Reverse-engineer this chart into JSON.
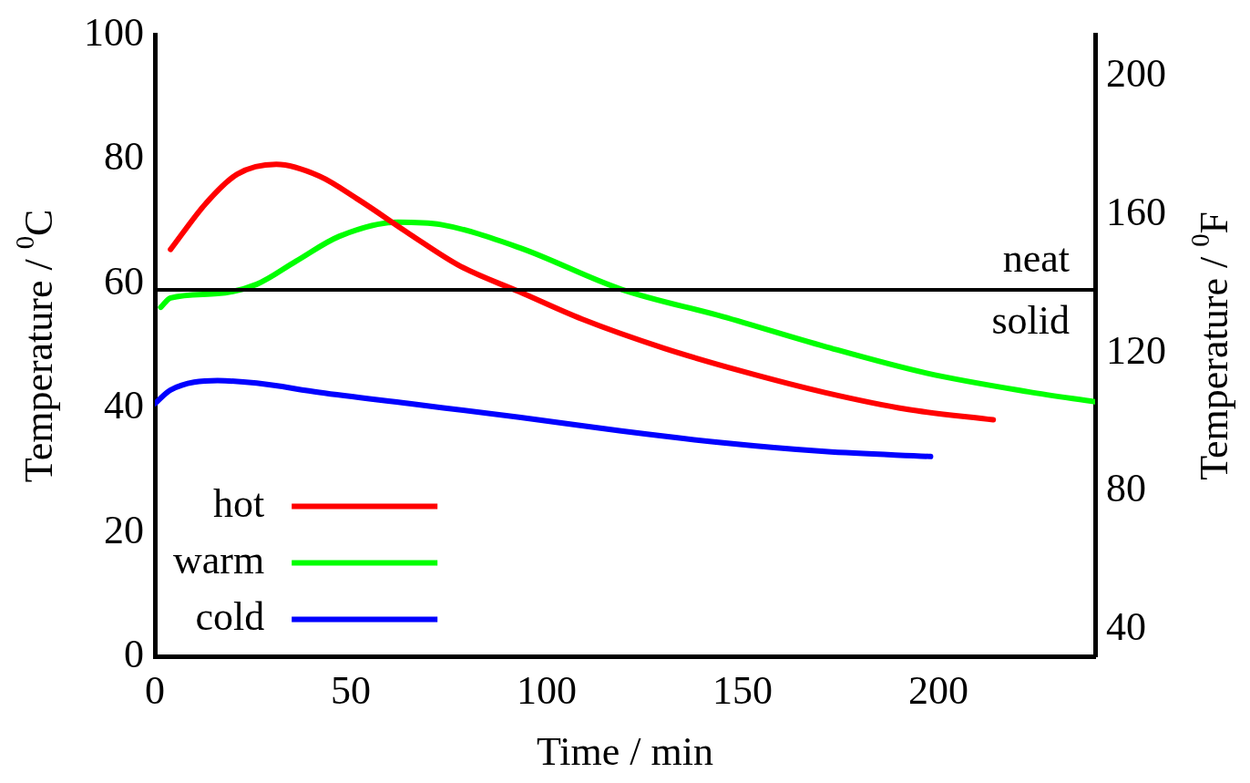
{
  "chart_data": {
    "type": "line",
    "xlabel": "Time / min",
    "ylabel": "Temperature / $^{0}$C",
    "y2label": "Temperature / $^{0}$F",
    "xlim": [
      0,
      240
    ],
    "xticks": [
      0,
      50,
      100,
      150,
      200
    ],
    "ylim": [
      0,
      100
    ],
    "yticks": [
      0,
      20,
      40,
      60,
      80,
      100
    ],
    "y2lim": [
      32,
      212
    ],
    "y2ticks": [
      40,
      80,
      120,
      160,
      200
    ],
    "grid": false,
    "legend": "bottom left",
    "marker": "none",
    "line_style": "solid",
    "series": [
      {
        "name": "hot",
        "color": "#ff0000",
        "x": [
          4,
          13,
          21,
          31,
          42,
          52,
          65,
          78,
          93,
          109,
          130,
          150,
          171,
          192,
          214
        ],
        "values": [
          65.5,
          72.9,
          77.6,
          79.2,
          77.3,
          73.5,
          68,
          62.8,
          58.7,
          54.3,
          49.6,
          45.9,
          42.5,
          39.8,
          38.1
        ]
      },
      {
        "name": "warm",
        "color": "#00ff00",
        "x": [
          1.5,
          4,
          16,
          26,
          36,
          47,
          62,
          73,
          93,
          119,
          145,
          171,
          197,
          223,
          240
        ],
        "values": [
          56.2,
          57.7,
          58.4,
          59.9,
          63.6,
          67.6,
          69.9,
          69.5,
          65.8,
          59.1,
          54.7,
          49.9,
          45.6,
          42.6,
          41
        ]
      },
      {
        "name": "cold",
        "color": "#0000ff",
        "x": [
          0,
          4,
          16,
          26,
          42,
          65,
          93,
          119,
          145,
          171,
          198
        ],
        "values": [
          40.7,
          42.9,
          44.4,
          44,
          42.5,
          40.7,
          38.5,
          36.3,
          34.4,
          33,
          32.2
        ]
      }
    ],
    "ref_lines": [
      {
        "axis": "y",
        "value": 59,
        "color": "#000000"
      }
    ],
    "annotations": [
      "neat",
      "solid"
    ]
  }
}
